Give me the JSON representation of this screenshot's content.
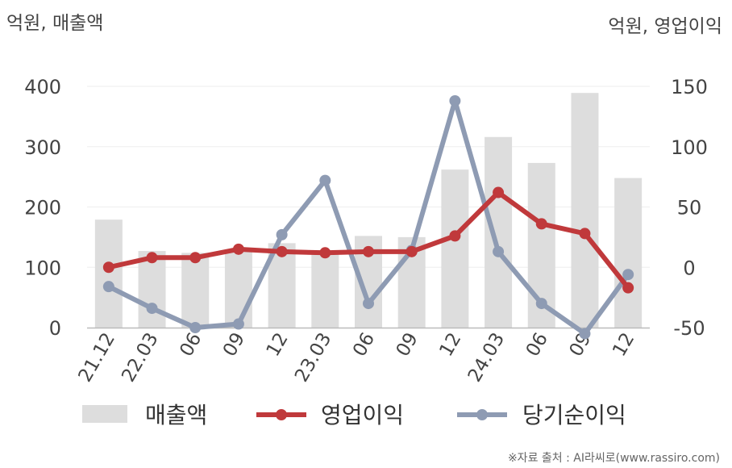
{
  "chart_data": {
    "type": "bar",
    "left_unit_label": "억원, 매출액",
    "right_unit_label": "억원, 영업이익",
    "categories": [
      "21.12",
      "22.03",
      "06",
      "09",
      "12",
      "23.03",
      "06",
      "09",
      "12",
      "24.03",
      "06",
      "09",
      "12"
    ],
    "left_axis": {
      "ylim": [
        0,
        400
      ],
      "ticks": [
        0,
        100,
        200,
        300,
        400
      ]
    },
    "right_axis": {
      "ylim": [
        -50,
        150
      ],
      "ticks": [
        -50,
        0,
        50,
        100,
        150
      ]
    },
    "grid": true,
    "legend_position": "bottom",
    "series": [
      {
        "name": "매출액",
        "type": "bar",
        "axis": "left",
        "color": "#dddddd",
        "values": [
          179,
          127,
          124,
          127,
          140,
          124,
          152,
          150,
          262,
          316,
          273,
          389,
          248
        ]
      },
      {
        "name": "영업이익",
        "type": "line",
        "axis": "right",
        "color": "#c0393b",
        "values": [
          0,
          8,
          8,
          15,
          13,
          12,
          13,
          13,
          26,
          62,
          36,
          28,
          -17
        ]
      },
      {
        "name": "당기순이익",
        "type": "line",
        "axis": "right",
        "color": "#8e9bb3",
        "values": [
          -16,
          -34,
          -50,
          -47,
          27,
          72,
          -30,
          14,
          138,
          13,
          -30,
          -55,
          -6
        ]
      }
    ]
  },
  "source_note": "※자료 출처 : AI라씨로(www.rassiro.com)"
}
